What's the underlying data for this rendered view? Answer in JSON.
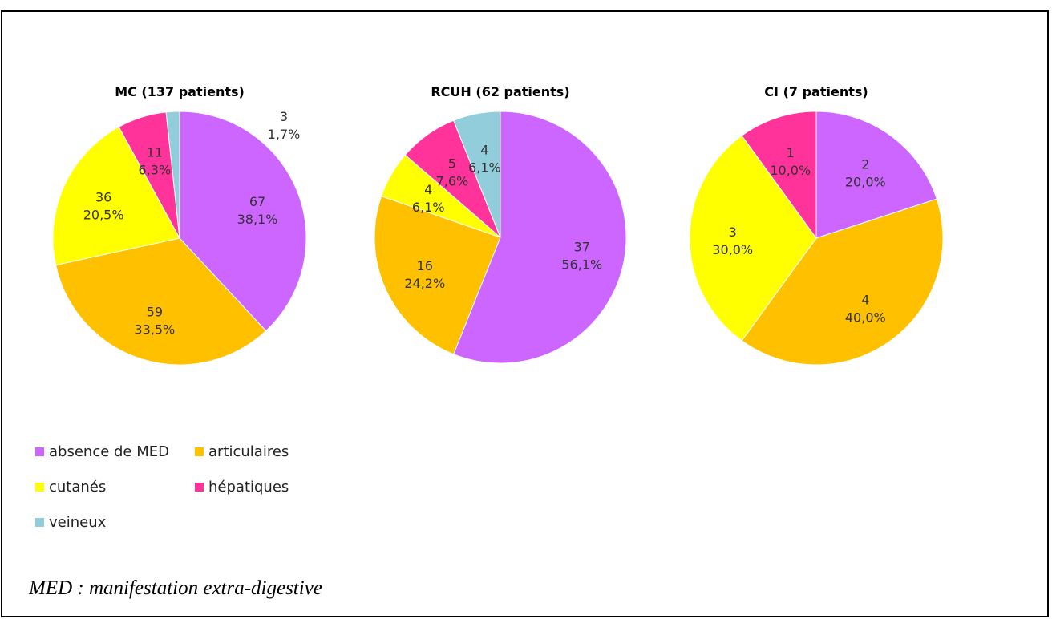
{
  "chart_data": [
    {
      "type": "pie",
      "title": "MC (137 patients)",
      "categories": [
        "absence de MED",
        "articulaires",
        "cutanés",
        "hépatiques",
        "veineux"
      ],
      "values": [
        67,
        59,
        36,
        11,
        3
      ],
      "percent_labels": [
        "38,1%",
        "33,5%",
        "20,5%",
        "6,3%",
        "1,7%"
      ]
    },
    {
      "type": "pie",
      "title": "RCUH (62 patients)",
      "categories": [
        "absence de MED",
        "articulaires",
        "cutanés",
        "hépatiques",
        "veineux"
      ],
      "values": [
        37,
        16,
        4,
        5,
        4
      ],
      "percent_labels": [
        "56,1%",
        "24,2%",
        "6,1%",
        "7,6%",
        "6,1%"
      ]
    },
    {
      "type": "pie",
      "title": "CI (7 patients)",
      "categories": [
        "absence de MED",
        "articulaires",
        "cutanés",
        "hépatiques"
      ],
      "values": [
        2,
        4,
        3,
        1
      ],
      "percent_labels": [
        "20,0%",
        "40,0%",
        "30,0%",
        "10,0%"
      ]
    }
  ],
  "legend": [
    {
      "label": "absence de MED",
      "color": "#cc66ff"
    },
    {
      "label": "articulaires",
      "color": "#ffc000"
    },
    {
      "label": "cutanés",
      "color": "#ffff00"
    },
    {
      "label": "hépatiques",
      "color": "#ff3399"
    },
    {
      "label": "veineux",
      "color": "#92cddc"
    }
  ],
  "colors": {
    "absence de MED": "#cc66ff",
    "articulaires": "#ffc000",
    "cutanés": "#ffff00",
    "hépatiques": "#ff3399",
    "veineux": "#92cddc"
  },
  "footnote": "MED : manifestation extra-digestive"
}
